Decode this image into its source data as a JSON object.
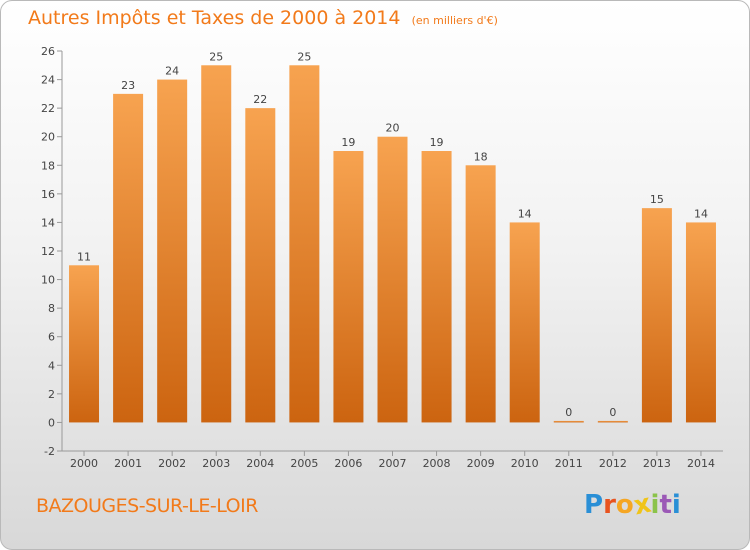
{
  "header": {
    "title": "Autres Impôts et Taxes de 2000 à 2014",
    "subtitle": "(en milliers d'€)"
  },
  "footer": {
    "commune": "BAZOUGES-SUR-LE-LOIR",
    "logo": {
      "letters": [
        "P",
        "r",
        "o",
        "x",
        "i",
        "t",
        "i"
      ],
      "colors": [
        "#2a8fd6",
        "#e8531f",
        "#f5a623",
        "#f0c419",
        "#8bc34a",
        "#9b59b6",
        "#2a8fd6"
      ]
    }
  },
  "chart_data": {
    "type": "bar",
    "title": "Autres Impôts et Taxes de 2000 à 2014",
    "subtitle": "(en milliers d'€)",
    "xlabel": "",
    "ylabel": "",
    "categories": [
      "2000",
      "2001",
      "2002",
      "2003",
      "2004",
      "2005",
      "2006",
      "2007",
      "2008",
      "2009",
      "2010",
      "2011",
      "2012",
      "2013",
      "2014"
    ],
    "values": [
      11,
      23,
      24,
      25,
      22,
      25,
      19,
      20,
      19,
      18,
      14,
      0,
      0,
      15,
      14
    ],
    "ylim": [
      -2,
      26
    ],
    "yticks": [
      -2,
      0,
      2,
      4,
      6,
      8,
      10,
      12,
      14,
      16,
      18,
      20,
      22,
      24,
      26
    ],
    "grid": false,
    "legend": "none",
    "colors": {
      "bar_light": "#f7a350",
      "bar_dark": "#cc6410",
      "text": "#f27a1a",
      "axis": "#999999",
      "label": "#444444"
    }
  }
}
